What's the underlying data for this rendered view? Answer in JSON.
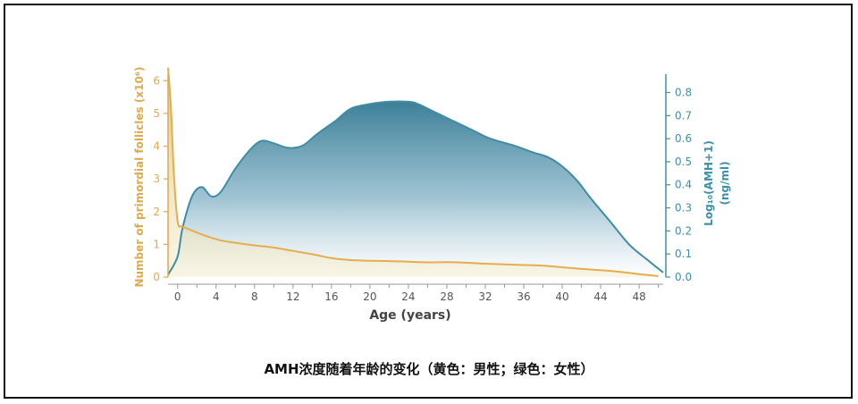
{
  "chart_data": {
    "type": "area",
    "xlabel": "Age (years)",
    "ylabel_left": "Number of primordial follicles (x10⁶)",
    "ylabel_right_main": "Log₁₀(AMH+1)",
    "ylabel_right_unit": "(ng/ml)",
    "x_ticks": [
      "0",
      "4",
      "8",
      "12",
      "16",
      "20",
      "24",
      "28",
      "32",
      "36",
      "40",
      "44",
      "48"
    ],
    "y_left_ticks": [
      "0",
      "1",
      "2",
      "3",
      "4",
      "5",
      "6"
    ],
    "y_right_ticks": [
      "0.0",
      "0.1",
      "0.2",
      "0.3",
      "0.4",
      "0.5",
      "0.6",
      "0.7",
      "0.8"
    ],
    "xlim": [
      -1,
      50.5
    ],
    "ylim_left": [
      0,
      6.2
    ],
    "ylim_right": [
      0,
      0.86
    ],
    "grid": false,
    "colors": {
      "left_axis": "#e0a94a",
      "right_axis": "#3f8fa8",
      "amh_line": "#3f8ca4",
      "follicle_line": "#e6ad4e"
    },
    "series": [
      {
        "axis": "right",
        "x": [
          -1,
          0,
          0.5,
          1.5,
          2.5,
          3.5,
          4.5,
          6,
          7.5,
          8.7,
          10,
          11.5,
          13,
          14.5,
          16.5,
          18,
          20,
          22,
          24,
          25,
          26.5,
          28.5,
          30.5,
          32.5,
          35,
          37,
          38.5,
          40,
          41.5,
          43,
          45,
          47,
          49,
          50.5
        ],
        "values": [
          0.01,
          0.09,
          0.21,
          0.35,
          0.39,
          0.35,
          0.37,
          0.47,
          0.55,
          0.59,
          0.58,
          0.56,
          0.57,
          0.62,
          0.68,
          0.73,
          0.75,
          0.76,
          0.76,
          0.75,
          0.72,
          0.68,
          0.64,
          0.6,
          0.57,
          0.54,
          0.52,
          0.48,
          0.42,
          0.34,
          0.24,
          0.14,
          0.07,
          0.02
        ]
      },
      {
        "axis": "left",
        "x": [
          -1,
          -0.7,
          -0.4,
          0,
          0.5,
          1.5,
          3,
          4.5,
          6,
          8,
          10,
          12,
          14,
          16,
          18,
          20,
          22,
          24,
          26,
          28,
          30,
          32,
          34,
          36,
          38,
          40,
          42,
          44,
          46,
          48,
          50
        ],
        "values": [
          6.4,
          5.2,
          3.2,
          1.7,
          1.55,
          1.42,
          1.25,
          1.12,
          1.05,
          0.97,
          0.9,
          0.8,
          0.7,
          0.58,
          0.52,
          0.5,
          0.49,
          0.47,
          0.45,
          0.46,
          0.44,
          0.41,
          0.39,
          0.37,
          0.35,
          0.3,
          0.25,
          0.21,
          0.16,
          0.09,
          0.03
        ]
      }
    ]
  },
  "caption": "AMH浓度随着年龄的变化（黄色：男性；绿色：女性）"
}
